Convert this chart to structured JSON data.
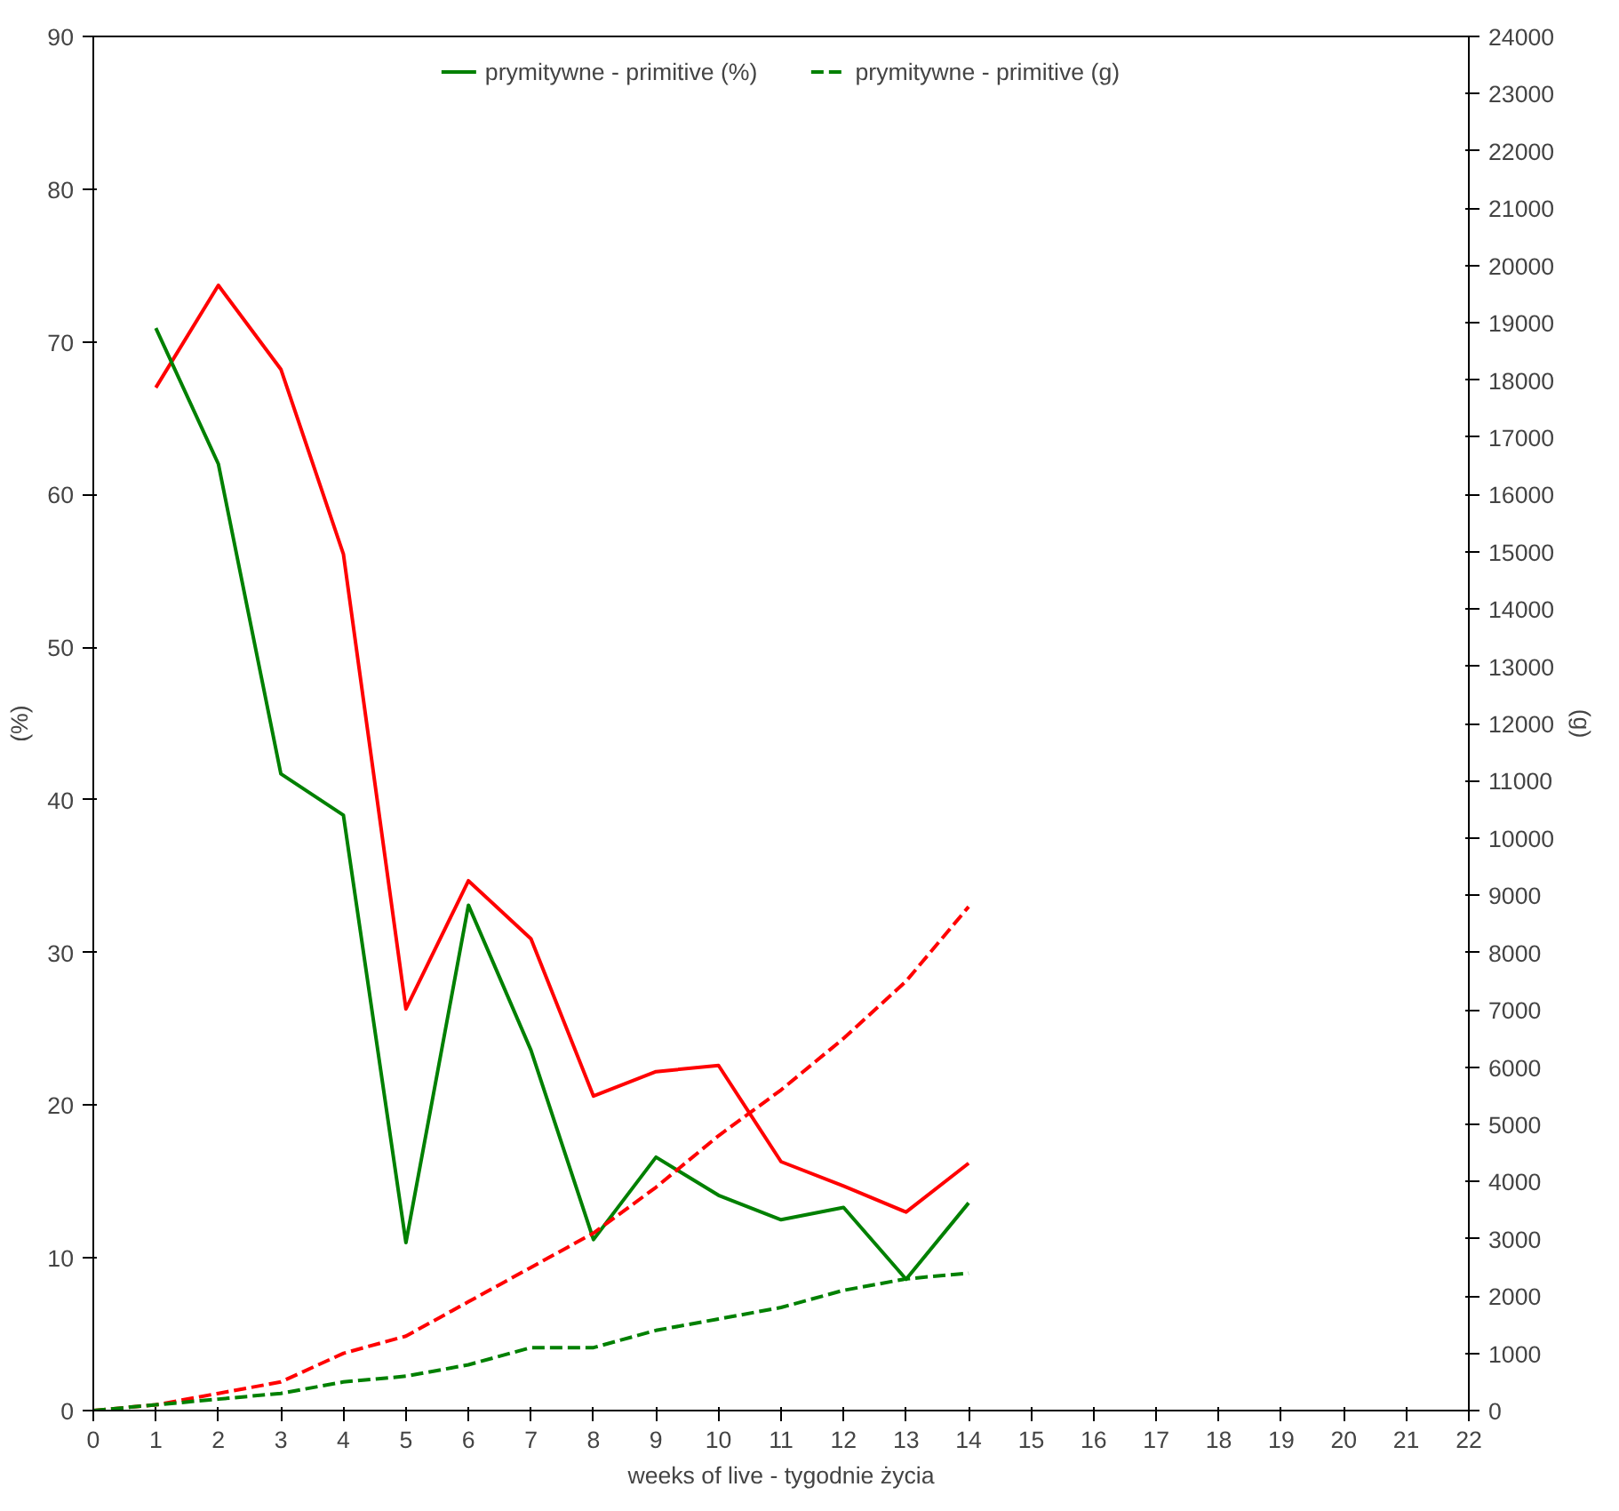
{
  "chart_data": {
    "type": "line",
    "xlabel": "weeks of live - tygodnie życia",
    "ylabel": "(%)",
    "y2label": "(g)",
    "xlim": [
      0,
      22
    ],
    "xticks": [
      0,
      1,
      2,
      3,
      4,
      5,
      6,
      7,
      8,
      9,
      10,
      11,
      12,
      13,
      14,
      15,
      16,
      17,
      18,
      19,
      20,
      21,
      22
    ],
    "ylim": [
      0,
      90
    ],
    "yticks": [
      0,
      10,
      20,
      30,
      40,
      50,
      60,
      70,
      80,
      90
    ],
    "y2lim": [
      0,
      24000
    ],
    "y2ticks": [
      0,
      1000,
      2000,
      3000,
      4000,
      5000,
      6000,
      7000,
      8000,
      9000,
      10000,
      11000,
      12000,
      13000,
      14000,
      15000,
      16000,
      17000,
      18000,
      19000,
      20000,
      21000,
      22000,
      23000,
      24000
    ],
    "grid": false,
    "legend": "top",
    "marker": "none",
    "series": [
      {
        "color": "#ff0000",
        "line_style": "solid",
        "x": [
          1,
          2,
          3,
          4,
          5,
          6,
          7,
          8,
          9,
          10,
          11,
          12,
          13,
          14
        ],
        "values": [
          67,
          73.7,
          68.2,
          56.1,
          26.3,
          34.7,
          30.9,
          20.6,
          22.2,
          22.6,
          16.3,
          14.7,
          13,
          16.2
        ]
      },
      {
        "name": "prymitywne - primitive (%)",
        "color": "#008000",
        "line_style": "solid",
        "x": [
          1,
          2,
          3,
          4,
          5,
          6,
          7,
          8,
          9,
          10,
          11,
          12,
          13,
          14
        ],
        "values": [
          70.9,
          62,
          41.7,
          39,
          11,
          33.1,
          23.6,
          11.2,
          16.6,
          14.1,
          12.5,
          13.3,
          8.6,
          13.6
        ]
      },
      {
        "color": "#ff0000",
        "line_style": "dashed",
        "axis": "y2",
        "x": [
          0,
          1,
          2,
          3,
          4,
          5,
          6,
          7,
          8,
          9,
          10,
          11,
          12,
          13,
          14
        ],
        "values": [
          0,
          100,
          300,
          500,
          1000,
          1300,
          1900,
          2500,
          3100,
          3900,
          4800,
          5600,
          6500,
          7500,
          8800
        ]
      },
      {
        "name": "prymitywne - primitive (g)",
        "color": "#008000",
        "line_style": "dashed",
        "axis": "y2",
        "x": [
          0,
          1,
          2,
          3,
          4,
          5,
          6,
          7,
          8,
          9,
          10,
          11,
          12,
          13,
          14
        ],
        "values": [
          0,
          100,
          200,
          300,
          500,
          600,
          800,
          1100,
          1100,
          1400,
          1600,
          1800,
          2100,
          2300,
          2400
        ]
      }
    ]
  }
}
